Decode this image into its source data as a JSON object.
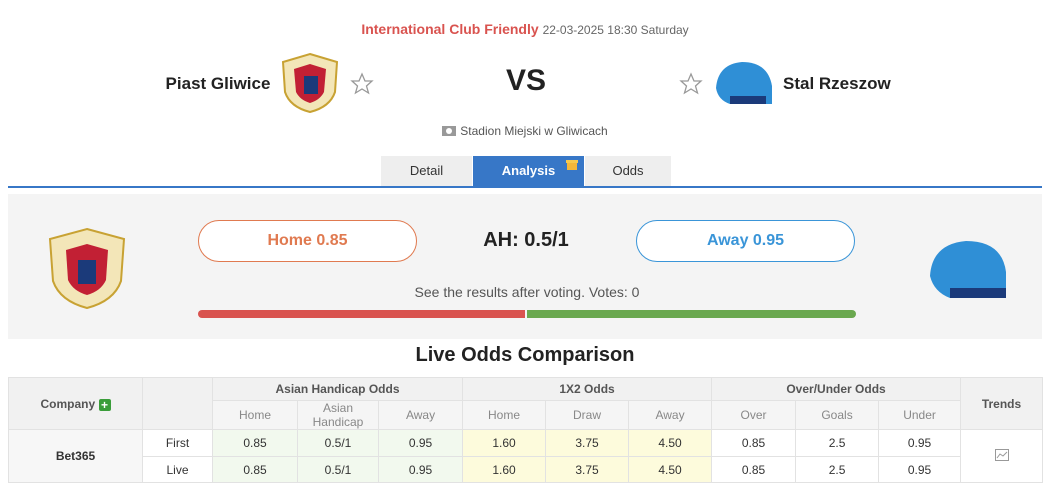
{
  "header": {
    "competition": "International Club Friendly",
    "datetime": "22-03-2025 18:30 Saturday"
  },
  "match": {
    "home": "Piast Gliwice",
    "vs": "VS",
    "away": "Stal Rzeszow",
    "venue": "Stadion Miejski w Gliwicach"
  },
  "tabs": [
    "Detail",
    "Analysis",
    "Odds"
  ],
  "vote": {
    "home": "Home 0.85",
    "handicap": "AH: 0.5/1",
    "away": "Away 0.95",
    "note": "See the results after voting. Votes: 0"
  },
  "odds": {
    "title": "Live Odds Comparison",
    "company_header": "Company",
    "groups": [
      "Asian Handicap Odds",
      "1X2 Odds",
      "Over/Under Odds"
    ],
    "trends": "Trends",
    "subheaders": [
      "Home",
      "Asian Handicap",
      "Away",
      "Home",
      "Draw",
      "Away",
      "Over",
      "Goals",
      "Under"
    ],
    "bookmakers": [
      {
        "name": "Bet365",
        "rows": [
          {
            "label": "First",
            "values": [
              "0.85",
              "0.5/1",
              "0.95",
              "1.60",
              "3.75",
              "4.50",
              "0.85",
              "2.5",
              "0.95"
            ]
          },
          {
            "label": "Live",
            "values": [
              "0.85",
              "0.5/1",
              "0.95",
              "1.60",
              "3.75",
              "4.50",
              "0.85",
              "2.5",
              "0.95"
            ]
          }
        ]
      }
    ]
  }
}
